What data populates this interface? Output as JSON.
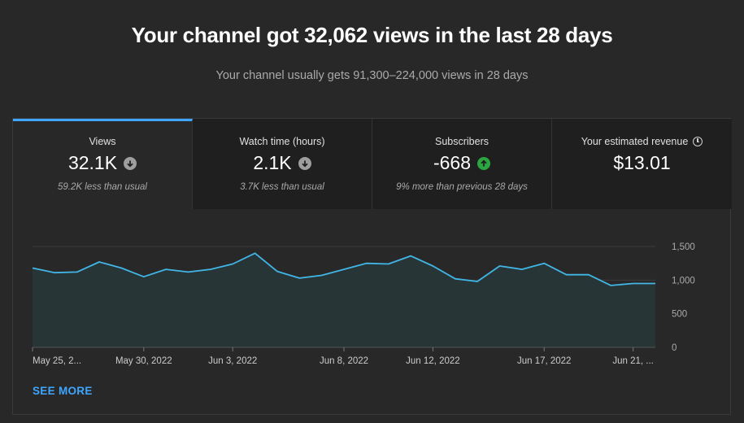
{
  "header": {
    "title": "Your channel got 32,062 views in the last 28 days",
    "subtitle": "Your channel usually gets 91,300–224,000 views in 28 days"
  },
  "tabs": [
    {
      "label": "Views",
      "value": "32.1K",
      "trend": "down",
      "note": "59.2K less than usual",
      "active": true
    },
    {
      "label": "Watch time (hours)",
      "value": "2.1K",
      "trend": "down",
      "note": "3.7K less than usual",
      "active": false
    },
    {
      "label": "Subscribers",
      "value": "-668",
      "trend": "up",
      "note": "9% more than previous 28 days",
      "active": false
    },
    {
      "label": "Your estimated revenue",
      "value": "$13.01",
      "trend": "none",
      "note": "",
      "active": false,
      "icon": "clock-icon"
    }
  ],
  "colors": {
    "accent": "#3ea6ff",
    "line": "#41b6e6",
    "area": "#283537",
    "trend_up": "#2ba640",
    "trend_down": "#9e9e9e"
  },
  "chart_data": {
    "type": "area",
    "title": "",
    "xlabel": "",
    "ylabel": "",
    "ylim": [
      0,
      1500
    ],
    "y_ticks": [
      "1,500",
      "1,000",
      "500",
      "0"
    ],
    "y_tick_values": [
      1500,
      1000,
      500,
      0
    ],
    "x_tick_labels": [
      "May 25, 2...",
      "May 30, 2022",
      "Jun 3, 2022",
      "Jun 8, 2022",
      "Jun 12, 2022",
      "Jun 17, 2022",
      "Jun 21, ..."
    ],
    "x_tick_index": [
      0,
      5,
      9,
      14,
      18,
      23,
      27
    ],
    "dates": [
      "May 25",
      "May 26",
      "May 27",
      "May 28",
      "May 29",
      "May 30",
      "May 31",
      "Jun 1",
      "Jun 2",
      "Jun 3",
      "Jun 4",
      "Jun 5",
      "Jun 6",
      "Jun 7",
      "Jun 8",
      "Jun 9",
      "Jun 10",
      "Jun 11",
      "Jun 12",
      "Jun 13",
      "Jun 14",
      "Jun 15",
      "Jun 16",
      "Jun 17",
      "Jun 18",
      "Jun 19",
      "Jun 20",
      "Jun 21",
      "Jun 22"
    ],
    "values": [
      1180,
      1110,
      1120,
      1270,
      1180,
      1050,
      1160,
      1120,
      1160,
      1240,
      1400,
      1130,
      1030,
      1070,
      1160,
      1250,
      1240,
      1360,
      1210,
      1020,
      980,
      1210,
      1160,
      1250,
      1080,
      1080,
      920,
      950,
      950
    ],
    "grid": true,
    "legend": "none"
  },
  "footer": {
    "see_more": "SEE MORE"
  }
}
